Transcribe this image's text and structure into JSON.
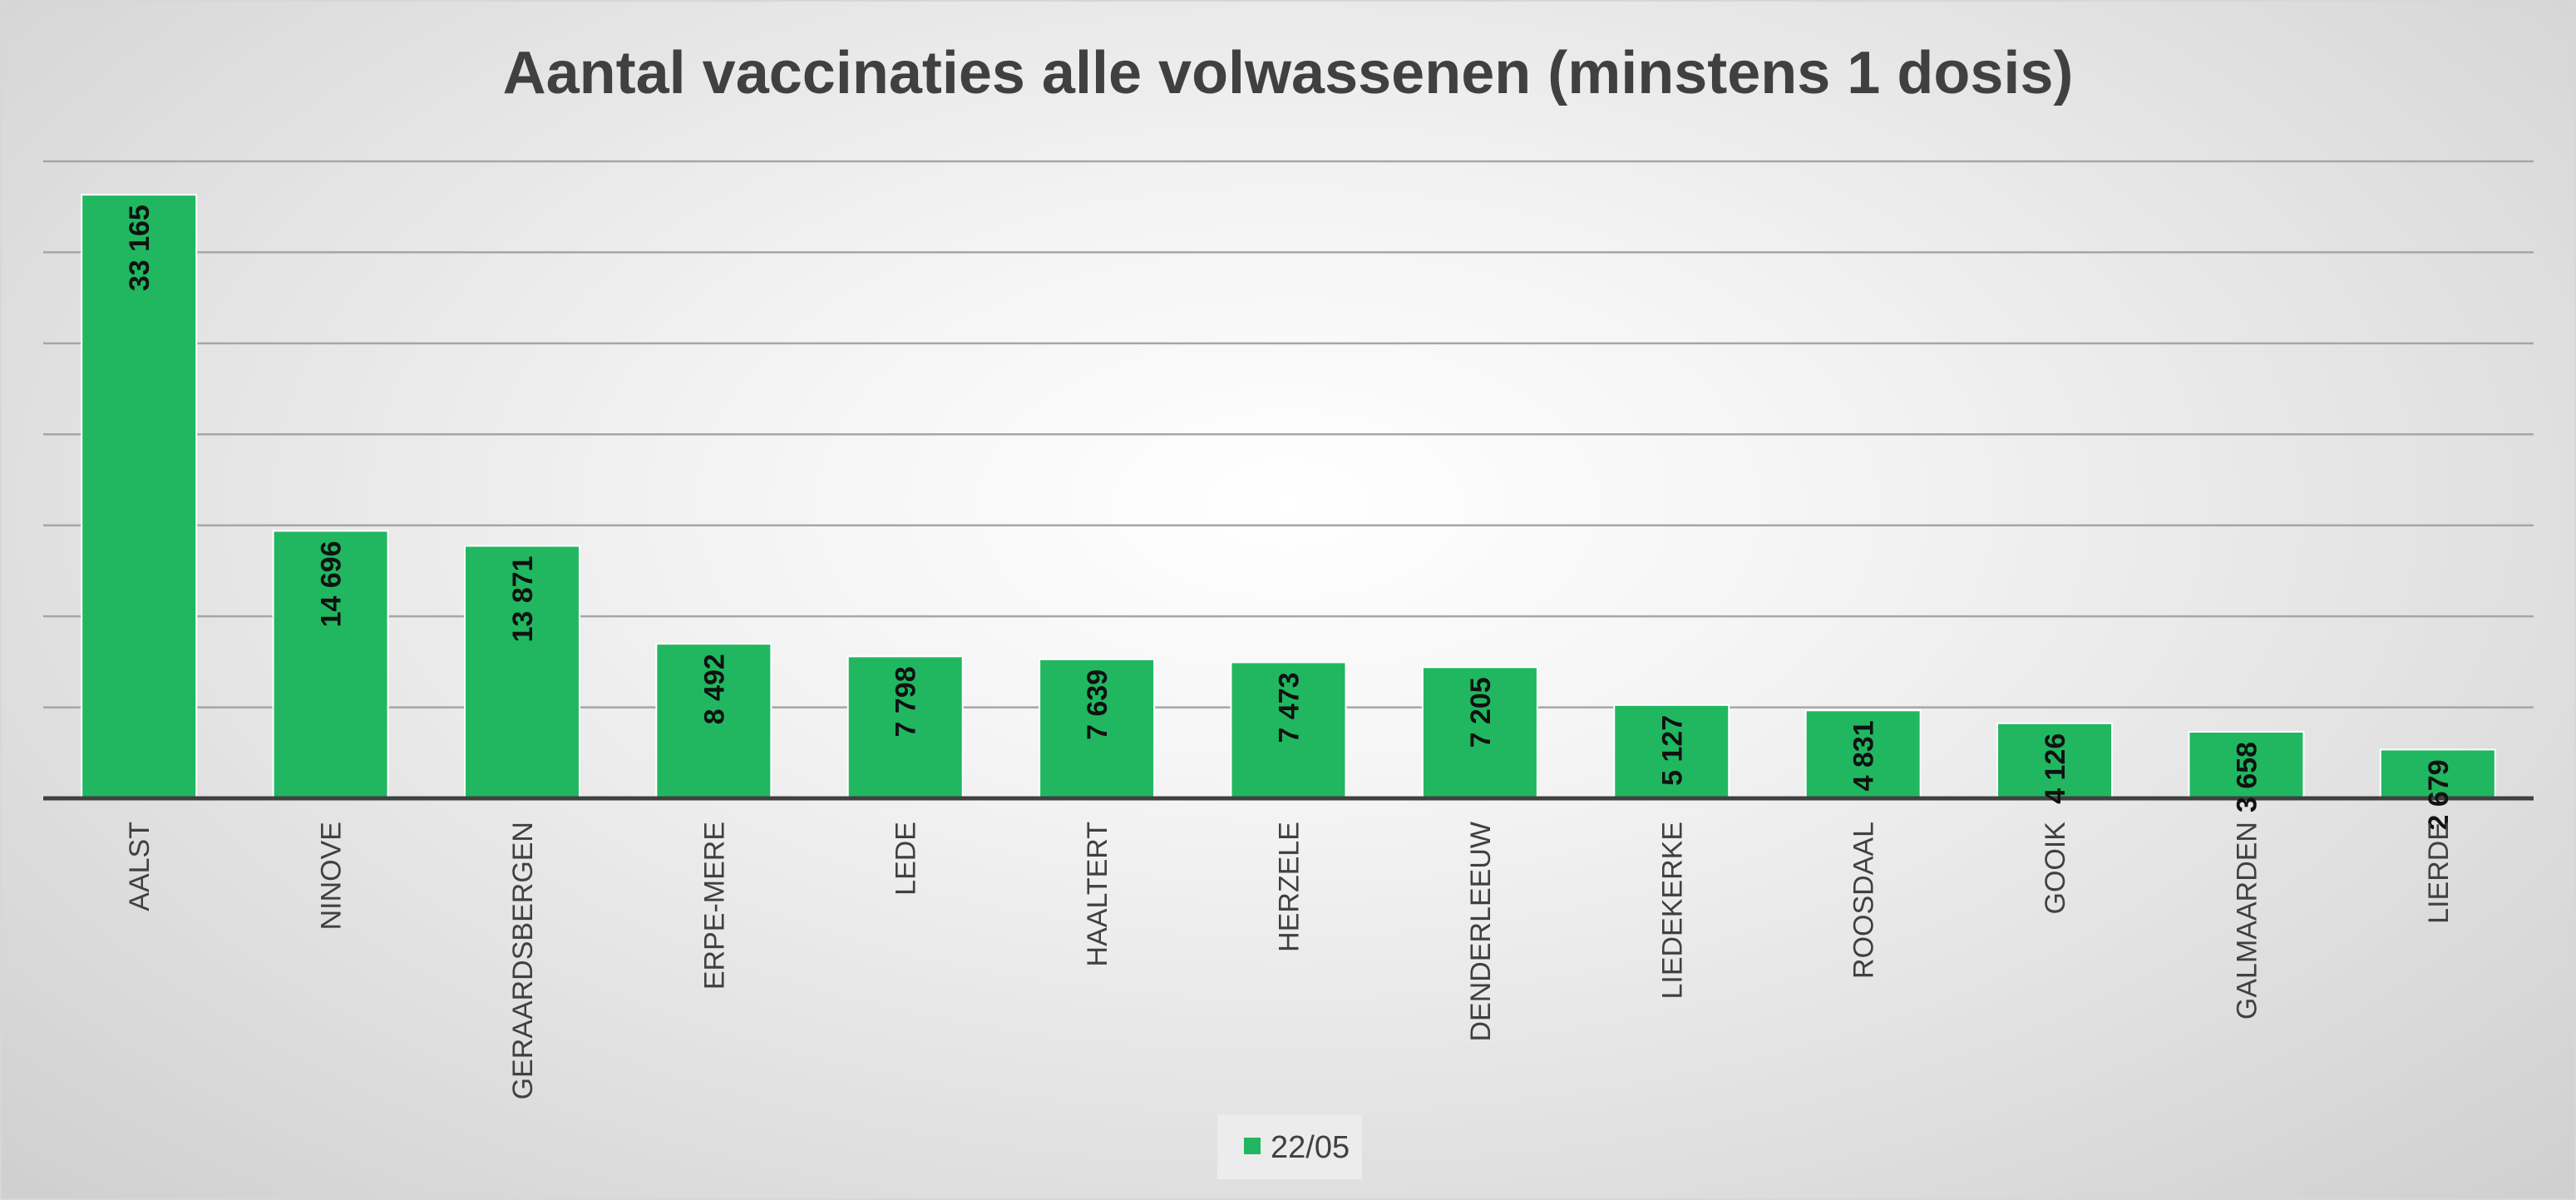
{
  "chart_data": {
    "type": "bar",
    "title": "Aantal vaccinaties alle volwassenen (minstens 1 dosis)",
    "xlabel": "",
    "ylabel": "",
    "categories": [
      "AALST",
      "NINOVE",
      "GERAARDSBERGEN",
      "ERPE-MERE",
      "LEDE",
      "HAALTERT",
      "HERZELE",
      "DENDERLEEUW",
      "LIEDEKERKE",
      "ROOSDAAL",
      "GOOIK",
      "GALMAARDEN",
      "LIERDE"
    ],
    "series": [
      {
        "name": "22/05",
        "values": [
          33165,
          14696,
          13871,
          8492,
          7798,
          7639,
          7473,
          7205,
          5127,
          4831,
          4126,
          3658,
          2679
        ],
        "labels": [
          "33 165",
          "14 696",
          "13 871",
          "8 492",
          "7 798",
          "7 639",
          "7 473",
          "7 205",
          "5 127",
          "4 831",
          "4 126",
          "3 658",
          "2 679"
        ]
      }
    ],
    "ylim": [
      0,
      35000
    ],
    "y_ticks": [
      0,
      5000,
      10000,
      15000,
      20000,
      25000,
      30000,
      35000
    ],
    "y_tick_labels_shown": false,
    "grid": true,
    "legend_position": "bottom",
    "colors": {
      "bar": "#21b761",
      "bar_edge": "#ffffff",
      "gridline": "#a6a6a6",
      "baseline": "#404040",
      "title": "#404040",
      "tick_label": "#404040",
      "data_label": "#111111",
      "legend_box": "#ececec"
    }
  }
}
